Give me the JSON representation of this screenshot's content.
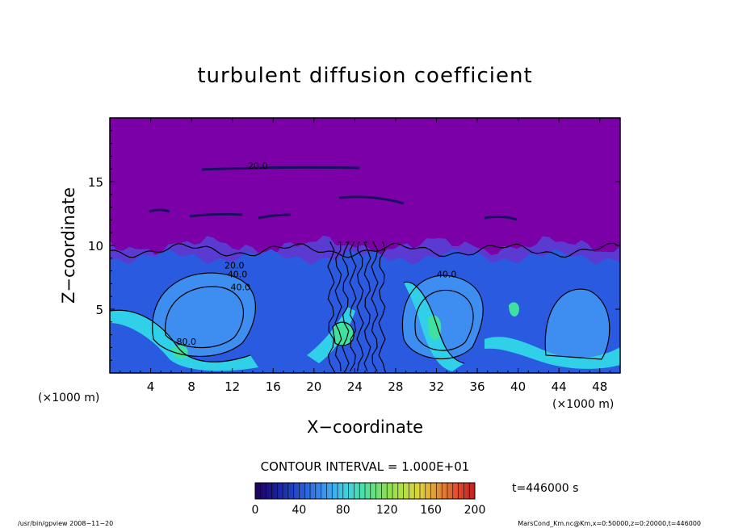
{
  "chart_data": {
    "type": "heatmap",
    "title": "turbulent diffusion coefficient",
    "xlabel": "X−coordinate",
    "ylabel": "Z−coordinate",
    "x_unit": "(×1000 m)",
    "y_unit": "(×1000 m)",
    "xlim": [
      0,
      50
    ],
    "ylim": [
      0,
      20
    ],
    "xticks": [
      4,
      8,
      12,
      16,
      20,
      24,
      28,
      32,
      36,
      40,
      44,
      48
    ],
    "yticks": [
      5,
      10,
      15
    ],
    "contour_interval": "CONTOUR INTERVAL = 1.000E+01",
    "time_label": "t=446000 s",
    "contour_labels": [
      {
        "x": 12.2,
        "y": 8.2,
        "text": "20.0"
      },
      {
        "x": 12.5,
        "y": 7.5,
        "text": "40.0"
      },
      {
        "x": 12.8,
        "y": 6.5,
        "text": "40.0"
      },
      {
        "x": 7.5,
        "y": 2.2,
        "text": "80.0"
      },
      {
        "x": 14.5,
        "y": 16.0,
        "text": "20.0"
      },
      {
        "x": 33.0,
        "y": 7.5,
        "text": "40.0"
      }
    ],
    "colorbar": {
      "min": 0,
      "max": 200,
      "ticks": [
        0,
        40,
        80,
        120,
        160,
        200
      ],
      "colors": [
        "#200060",
        "#1a1a90",
        "#2040c0",
        "#3070e0",
        "#40a0f0",
        "#40d0e0",
        "#50e0a0",
        "#80e060",
        "#b0e040",
        "#e0d040",
        "#e09030",
        "#e05030",
        "#c02020"
      ]
    },
    "field_colors": {
      "upper": "#7b00a8",
      "upper_edge": "#5a3ad0",
      "mid": "#2a5ae0",
      "light": "#3d8ef0",
      "cyan": "#30d0e8",
      "green": "#40e0a0"
    }
  },
  "footer": {
    "left": "/usr/bin/gpview   2008−11−20",
    "right": "MarsCond_Km.nc@Km,x=0:50000,z=0:20000,t=446000"
  }
}
